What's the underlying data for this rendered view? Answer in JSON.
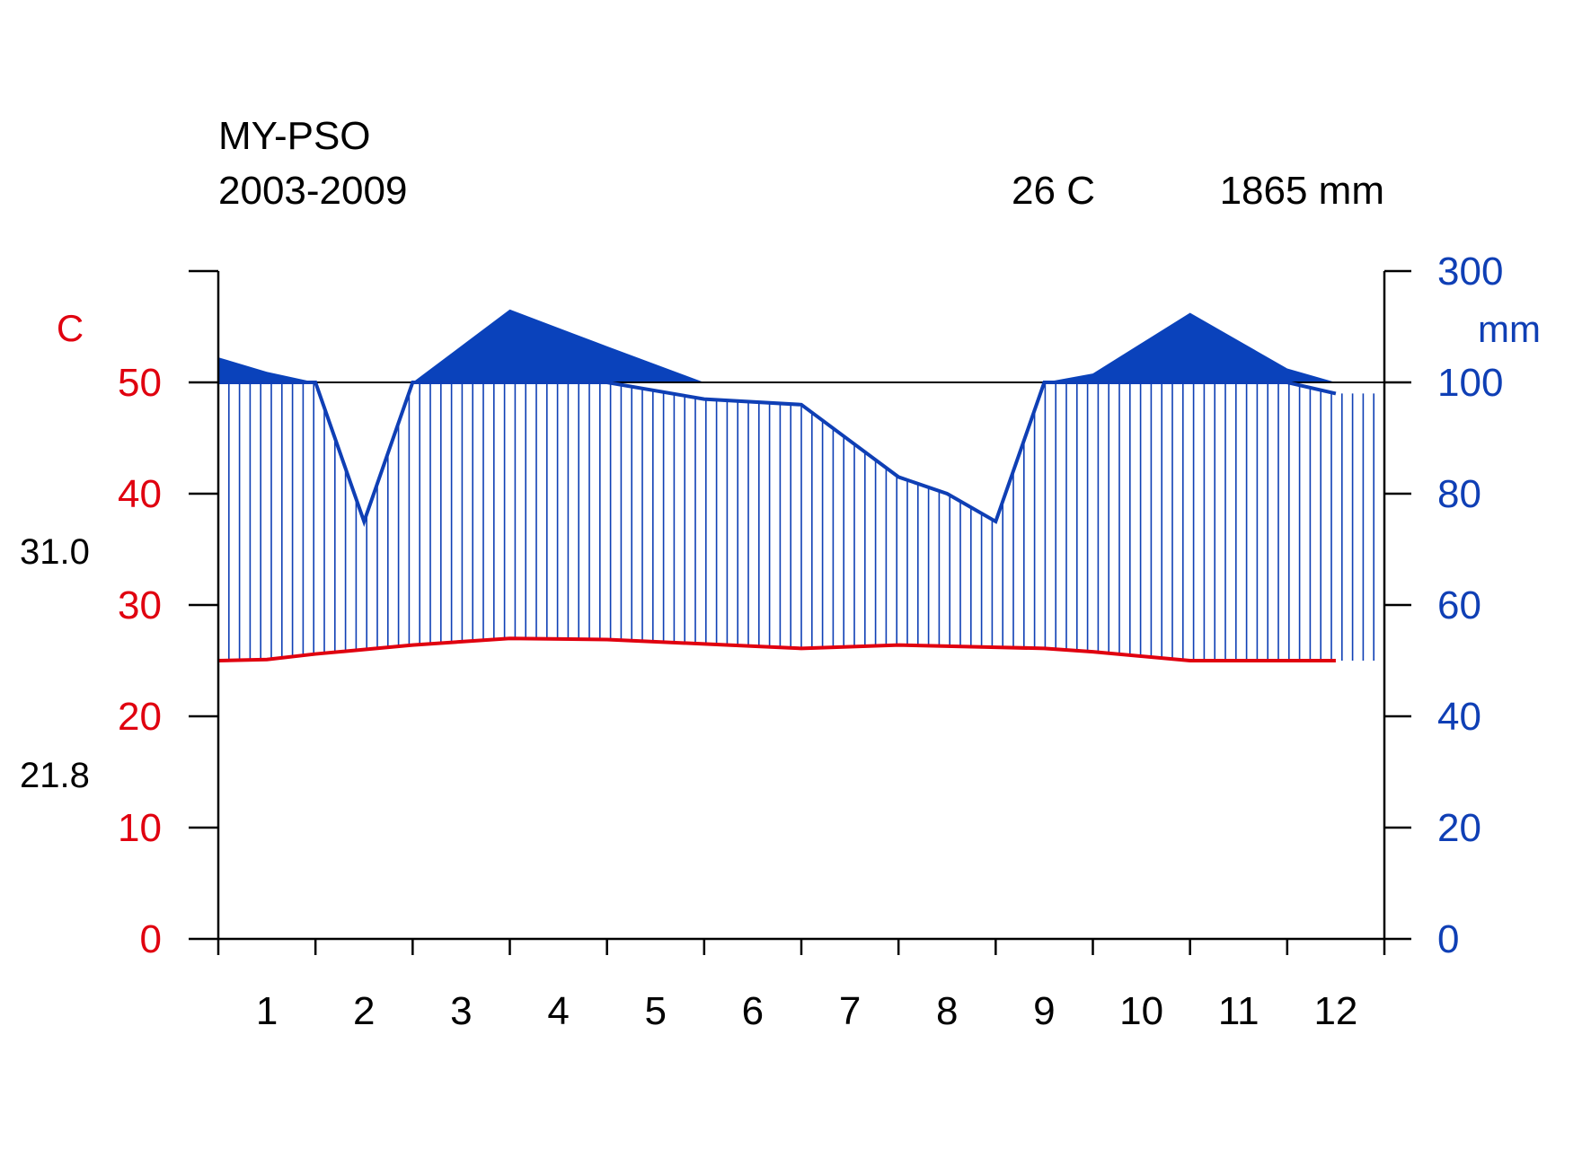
{
  "header": {
    "station": "MY-PSO",
    "period": "2003-2009",
    "mean_temp": "26 C",
    "annual_precip": "1865 mm"
  },
  "left_axis": {
    "unit": "C",
    "ticks": [
      "0",
      "10",
      "20",
      "30",
      "40",
      "50"
    ],
    "color": "#e0000f"
  },
  "right_axis": {
    "unit": "mm",
    "ticks": [
      "0",
      "20",
      "40",
      "60",
      "80",
      "100",
      "300"
    ],
    "color": "#0f3fb5"
  },
  "side_labels": {
    "max_temp": "31.0",
    "min_temp": "21.8"
  },
  "chart_data": {
    "type": "line",
    "x_ticks": [
      "1",
      "2",
      "3",
      "4",
      "5",
      "6",
      "7",
      "8",
      "9",
      "10",
      "11",
      "12"
    ],
    "x": [
      0.5,
      1,
      1.5,
      2,
      2.5,
      3.5,
      4.5,
      5.5,
      6.5,
      7.5,
      8,
      8.5,
      9,
      9.5,
      10.5,
      11.5,
      12
    ],
    "series": [
      {
        "name": "temperature",
        "unit": "C",
        "color": "#e0000f",
        "values": [
          25.0,
          25.1,
          25.6,
          26.0,
          26.4,
          27.0,
          26.9,
          26.5,
          26.1,
          26.4,
          26.3,
          26.2,
          26.1,
          25.8,
          25.0,
          25.0,
          25.0
        ]
      },
      {
        "name": "precipitation",
        "unit": "mm",
        "color": "#0f3fb5",
        "values": [
          145,
          119,
          100,
          75,
          100,
          231,
          165,
          97,
          96,
          83,
          80,
          75,
          100,
          116,
          225,
          125,
          98
        ]
      }
    ],
    "temp_ylim": [
      0,
      60
    ],
    "precip_ylim": [
      0,
      300
    ],
    "precip_scale_break": 100,
    "xlim": [
      0.5,
      12.5
    ],
    "grid": false
  }
}
